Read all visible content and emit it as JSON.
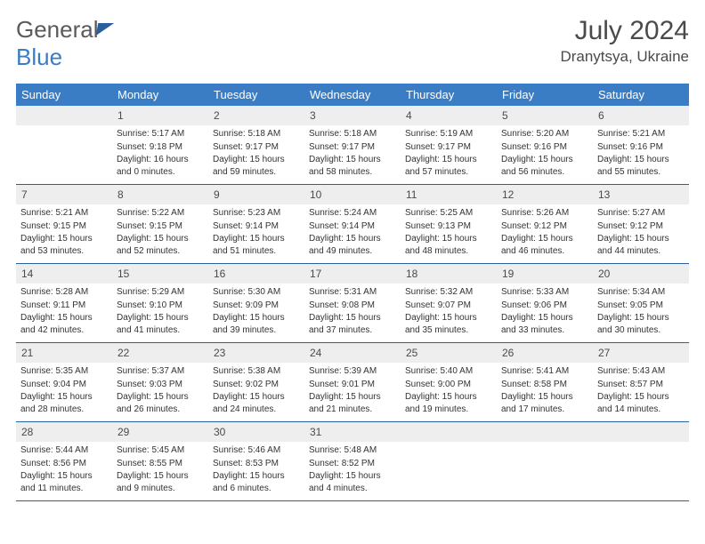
{
  "logo": {
    "text1": "General",
    "text2": "Blue"
  },
  "header": {
    "title": "July 2024",
    "location": "Dranytsya, Ukraine"
  },
  "colors": {
    "header_bg": "#3b7dc4",
    "header_text": "#ffffff",
    "date_bg": "#eeeeee",
    "border": "#2a5f9e",
    "body_text": "#333333"
  },
  "dayNames": [
    "Sunday",
    "Monday",
    "Tuesday",
    "Wednesday",
    "Thursday",
    "Friday",
    "Saturday"
  ],
  "weeks": [
    [
      null,
      {
        "d": "1",
        "sr": "5:17 AM",
        "ss": "9:18 PM",
        "dl": "16 hours and 0 minutes."
      },
      {
        "d": "2",
        "sr": "5:18 AM",
        "ss": "9:17 PM",
        "dl": "15 hours and 59 minutes."
      },
      {
        "d": "3",
        "sr": "5:18 AM",
        "ss": "9:17 PM",
        "dl": "15 hours and 58 minutes."
      },
      {
        "d": "4",
        "sr": "5:19 AM",
        "ss": "9:17 PM",
        "dl": "15 hours and 57 minutes."
      },
      {
        "d": "5",
        "sr": "5:20 AM",
        "ss": "9:16 PM",
        "dl": "15 hours and 56 minutes."
      },
      {
        "d": "6",
        "sr": "5:21 AM",
        "ss": "9:16 PM",
        "dl": "15 hours and 55 minutes."
      }
    ],
    [
      {
        "d": "7",
        "sr": "5:21 AM",
        "ss": "9:15 PM",
        "dl": "15 hours and 53 minutes."
      },
      {
        "d": "8",
        "sr": "5:22 AM",
        "ss": "9:15 PM",
        "dl": "15 hours and 52 minutes."
      },
      {
        "d": "9",
        "sr": "5:23 AM",
        "ss": "9:14 PM",
        "dl": "15 hours and 51 minutes."
      },
      {
        "d": "10",
        "sr": "5:24 AM",
        "ss": "9:14 PM",
        "dl": "15 hours and 49 minutes."
      },
      {
        "d": "11",
        "sr": "5:25 AM",
        "ss": "9:13 PM",
        "dl": "15 hours and 48 minutes."
      },
      {
        "d": "12",
        "sr": "5:26 AM",
        "ss": "9:12 PM",
        "dl": "15 hours and 46 minutes."
      },
      {
        "d": "13",
        "sr": "5:27 AM",
        "ss": "9:12 PM",
        "dl": "15 hours and 44 minutes."
      }
    ],
    [
      {
        "d": "14",
        "sr": "5:28 AM",
        "ss": "9:11 PM",
        "dl": "15 hours and 42 minutes."
      },
      {
        "d": "15",
        "sr": "5:29 AM",
        "ss": "9:10 PM",
        "dl": "15 hours and 41 minutes."
      },
      {
        "d": "16",
        "sr": "5:30 AM",
        "ss": "9:09 PM",
        "dl": "15 hours and 39 minutes."
      },
      {
        "d": "17",
        "sr": "5:31 AM",
        "ss": "9:08 PM",
        "dl": "15 hours and 37 minutes."
      },
      {
        "d": "18",
        "sr": "5:32 AM",
        "ss": "9:07 PM",
        "dl": "15 hours and 35 minutes."
      },
      {
        "d": "19",
        "sr": "5:33 AM",
        "ss": "9:06 PM",
        "dl": "15 hours and 33 minutes."
      },
      {
        "d": "20",
        "sr": "5:34 AM",
        "ss": "9:05 PM",
        "dl": "15 hours and 30 minutes."
      }
    ],
    [
      {
        "d": "21",
        "sr": "5:35 AM",
        "ss": "9:04 PM",
        "dl": "15 hours and 28 minutes."
      },
      {
        "d": "22",
        "sr": "5:37 AM",
        "ss": "9:03 PM",
        "dl": "15 hours and 26 minutes."
      },
      {
        "d": "23",
        "sr": "5:38 AM",
        "ss": "9:02 PM",
        "dl": "15 hours and 24 minutes."
      },
      {
        "d": "24",
        "sr": "5:39 AM",
        "ss": "9:01 PM",
        "dl": "15 hours and 21 minutes."
      },
      {
        "d": "25",
        "sr": "5:40 AM",
        "ss": "9:00 PM",
        "dl": "15 hours and 19 minutes."
      },
      {
        "d": "26",
        "sr": "5:41 AM",
        "ss": "8:58 PM",
        "dl": "15 hours and 17 minutes."
      },
      {
        "d": "27",
        "sr": "5:43 AM",
        "ss": "8:57 PM",
        "dl": "15 hours and 14 minutes."
      }
    ],
    [
      {
        "d": "28",
        "sr": "5:44 AM",
        "ss": "8:56 PM",
        "dl": "15 hours and 11 minutes."
      },
      {
        "d": "29",
        "sr": "5:45 AM",
        "ss": "8:55 PM",
        "dl": "15 hours and 9 minutes."
      },
      {
        "d": "30",
        "sr": "5:46 AM",
        "ss": "8:53 PM",
        "dl": "15 hours and 6 minutes."
      },
      {
        "d": "31",
        "sr": "5:48 AM",
        "ss": "8:52 PM",
        "dl": "15 hours and 4 minutes."
      },
      null,
      null,
      null
    ]
  ],
  "labels": {
    "sunrise": "Sunrise:",
    "sunset": "Sunset:",
    "daylight": "Daylight:"
  }
}
